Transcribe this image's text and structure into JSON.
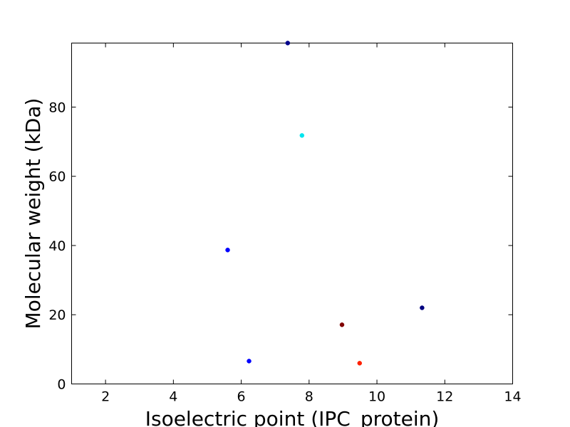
{
  "chart_data": {
    "type": "scatter",
    "x_label": "Isoelectric point (IPC_protein)",
    "y_label": "Molecular weight (kDa)",
    "x": [
      7.37,
      7.79,
      5.6,
      6.23,
      8.97,
      9.49,
      11.33
    ],
    "values": [
      98.5,
      71.8,
      38.7,
      6.6,
      17.1,
      6.0,
      22.0
    ],
    "colors": [
      "#00008b",
      "#00e5ee",
      "#0000ff",
      "#0000ff",
      "#800000",
      "#ff2000",
      "#000080"
    ],
    "xlim": [
      1,
      14
    ],
    "ylim": [
      0,
      98.5
    ],
    "xticks": [
      2,
      4,
      6,
      8,
      10,
      12,
      14
    ],
    "yticks": [
      0,
      20,
      40,
      60,
      80
    ]
  }
}
